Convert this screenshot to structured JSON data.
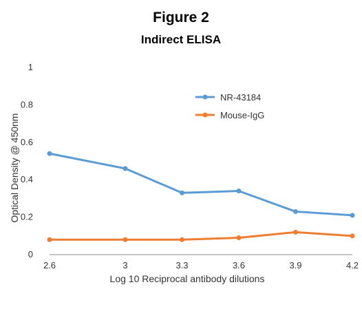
{
  "figure": {
    "title": "Figure 2"
  },
  "chart_data": {
    "type": "line",
    "title": "Indirect ELISA",
    "xlabel": "Log 10 Reciprocal antibody dilutions",
    "ylabel": "Optical Density @ 450nm",
    "x": [
      2.6,
      3,
      3.3,
      3.6,
      3.9,
      4.2
    ],
    "x_tick_labels": [
      "2.6",
      "3",
      "3.3",
      "3.6",
      "3.9",
      "4.2"
    ],
    "ylim": [
      0,
      1
    ],
    "y_ticks": [
      0,
      0.2,
      0.4,
      0.6,
      0.8,
      1
    ],
    "y_tick_labels": [
      "0",
      "0.2",
      "0.4",
      "0.6",
      "0.8",
      "1"
    ],
    "grid": false,
    "legend_position": "top-right",
    "series": [
      {
        "name": "NR-43184",
        "color": "#5b9bd5",
        "values": [
          0.54,
          0.46,
          0.33,
          0.34,
          0.23,
          0.21
        ]
      },
      {
        "name": "Mouse-IgG",
        "color": "#ed7d31",
        "values": [
          0.08,
          0.08,
          0.08,
          0.09,
          0.12,
          0.1
        ]
      }
    ]
  }
}
